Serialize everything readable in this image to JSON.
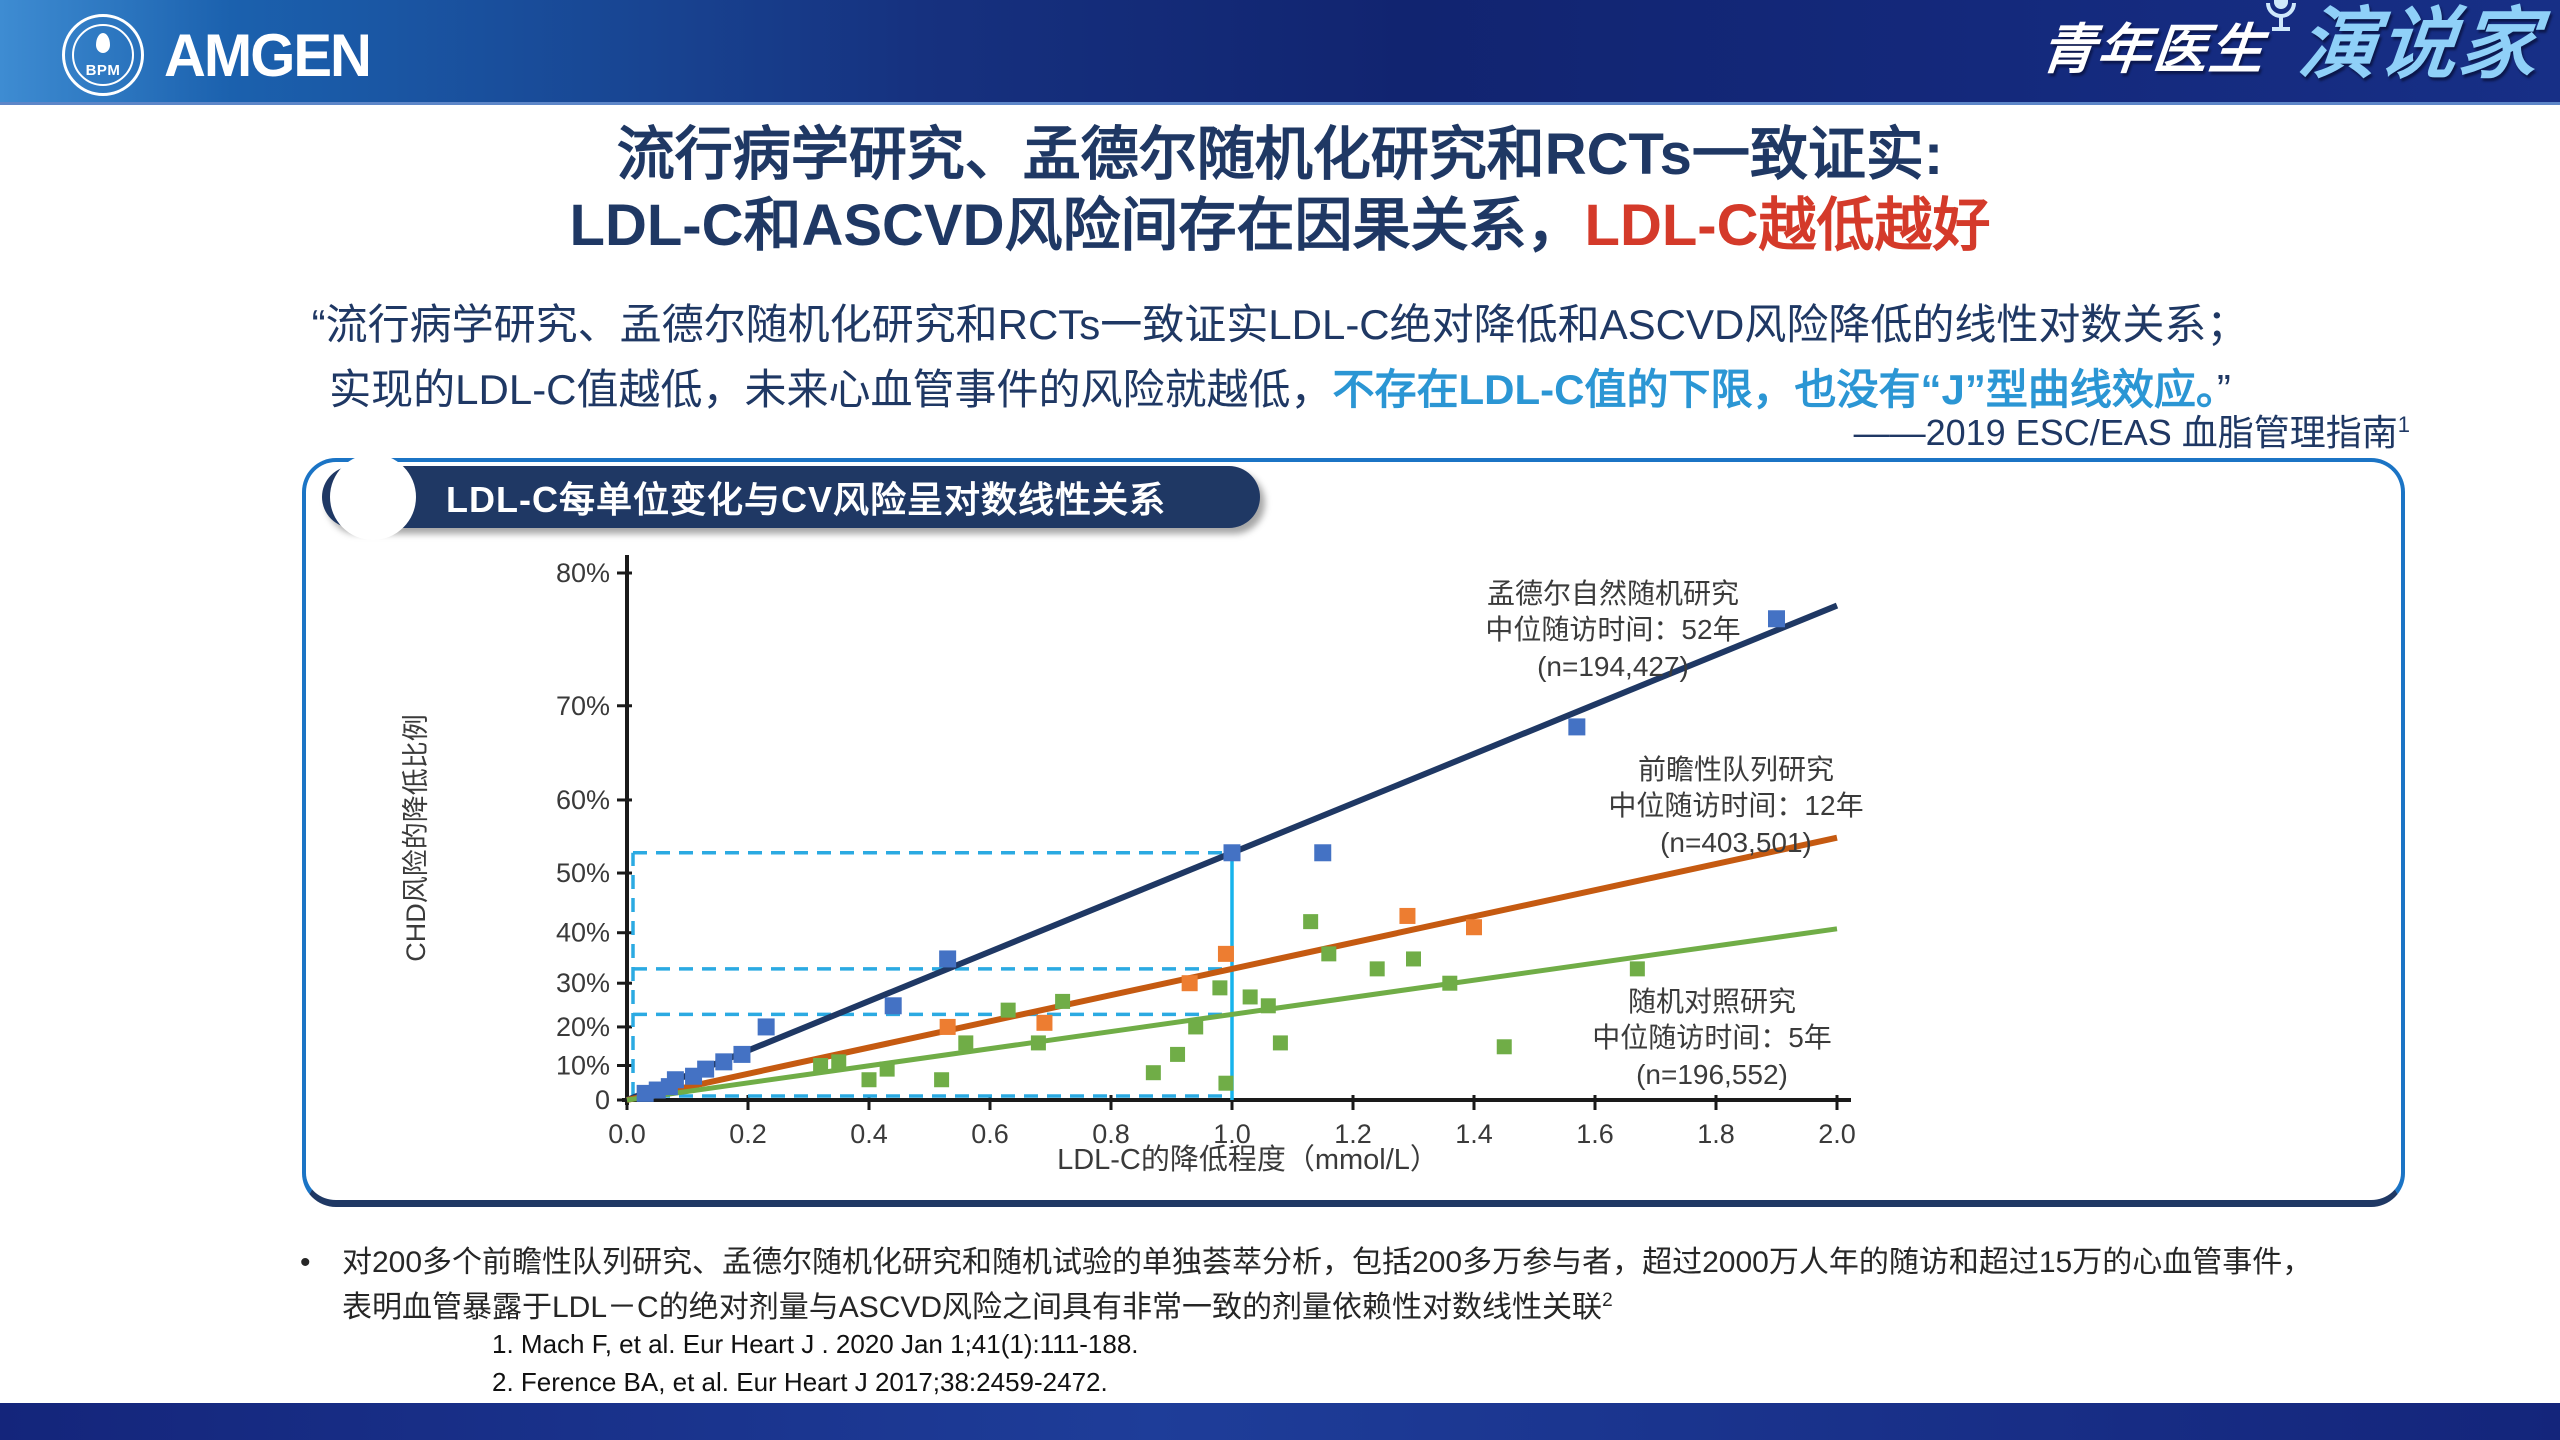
{
  "colors": {
    "navy_text": "#1F3864",
    "accent_red": "#D43A2A",
    "highlight_blue": "#2B96D4",
    "panel_border": "#1B74C5",
    "guide_cyan": "#2BAAE2"
  },
  "header": {
    "bpm_label": "BPM",
    "amgen_label": "AMGEN",
    "right_logo_part1": "青年医生",
    "right_logo_part2": "演说家"
  },
  "title": {
    "line1": "流行病学研究、孟德尔随机化研究和RCTs一致证实:",
    "line2_dark": "LDL-C和ASCVD风险间存在因果关系，",
    "line2_red": "LDL-C越低越好"
  },
  "quote": {
    "line1": "“流行病学研究、孟德尔随机化研究和RCTs一致证实LDL-C绝对降低和ASCVD风险降低的线性对数关系；",
    "line2_normal": "实现的LDL-C值越低，未来心血管事件的风险就越低，",
    "line2_highlight": "不存在LDL-C值的下限，也没有“J”型曲线效应。",
    "line2_close": "”",
    "attribution": "——2019 ESC/EAS 血脂管理指南",
    "attribution_sup": "1"
  },
  "panel": {
    "badge": "LDL-C每单位变化与CV风险呈对数线性关系"
  },
  "chart_data": {
    "type": "scatter",
    "title": "LDL-C每单位变化与CV风险呈对数线性关系",
    "xlabel": "LDL-C的降低程度（mmol/L）",
    "ylabel": "CHD风险的降低比例",
    "xlim": [
      0.0,
      2.0
    ],
    "y_scale": "proportional log: position ~ -ln(1 - p), 0 to 80%",
    "grid": false,
    "x_ticks": [
      {
        "label": "0.0",
        "v": 0.0
      },
      {
        "label": "0.2",
        "v": 0.2
      },
      {
        "label": "0.4",
        "v": 0.4
      },
      {
        "label": "0.6",
        "v": 0.6
      },
      {
        "label": "0.8",
        "v": 0.8
      },
      {
        "label": "1.0",
        "v": 1.0
      },
      {
        "label": "1.2",
        "v": 1.2
      },
      {
        "label": "1.4",
        "v": 1.4
      },
      {
        "label": "1.6",
        "v": 1.6
      },
      {
        "label": "1.8",
        "v": 1.8
      },
      {
        "label": "2.0",
        "v": 2.0
      }
    ],
    "y_ticks": [
      {
        "label": "80%",
        "p": 0.8
      },
      {
        "label": "70%",
        "p": 0.7
      },
      {
        "label": "60%",
        "p": 0.6
      },
      {
        "label": "50%",
        "p": 0.5
      },
      {
        "label": "40%",
        "p": 0.4
      },
      {
        "label": "30%",
        "p": 0.3
      },
      {
        "label": "20%",
        "p": 0.2
      },
      {
        "label": "10%",
        "p": 0.1
      },
      {
        "label": "0",
        "p": 0.0
      }
    ],
    "guides": {
      "color": "#2BAAE2",
      "solid_color": "#17B3EC",
      "x_ref": 1.0,
      "y_refs_pct": [
        53,
        33,
        23
      ],
      "baseline": true
    },
    "series": [
      {
        "name": "孟德尔自然随机研究",
        "annotation": [
          "孟德尔自然随机研究",
          "中位随访时间：52年",
          "(n=194,427)"
        ],
        "line_color": "#1F3864",
        "marker_color": "#4472C4",
        "value_at_1_mmol_pct": 53,
        "points": [
          [
            0.03,
            2
          ],
          [
            0.05,
            3
          ],
          [
            0.07,
            4
          ],
          [
            0.08,
            6
          ],
          [
            0.11,
            7
          ],
          [
            0.13,
            9
          ],
          [
            0.16,
            11
          ],
          [
            0.19,
            13
          ],
          [
            0.23,
            20
          ],
          [
            0.44,
            25
          ],
          [
            0.53,
            35
          ],
          [
            1.0,
            53
          ],
          [
            1.15,
            53
          ],
          [
            1.57,
            68
          ],
          [
            1.9,
            77
          ]
        ]
      },
      {
        "name": "前瞻性队列研究",
        "annotation": [
          "前瞻性队列研究",
          "中位随访时间：12年",
          "(n=403,501)"
        ],
        "line_color": "#C55A11",
        "marker_color": "#ED7D31",
        "value_at_1_mmol_pct": 33,
        "points": [
          [
            0.53,
            20
          ],
          [
            0.69,
            21
          ],
          [
            0.93,
            30
          ],
          [
            0.99,
            36
          ],
          [
            1.29,
            43
          ],
          [
            1.4,
            41
          ]
        ]
      },
      {
        "name": "随机对照研究",
        "annotation": [
          "随机对照研究",
          "中位随访时间：5年",
          "(n=196,552)"
        ],
        "line_color": "#70AD47",
        "marker_color": "#70AD47",
        "value_at_1_mmol_pct": 23,
        "points": [
          [
            0.32,
            10
          ],
          [
            0.35,
            11
          ],
          [
            0.4,
            6
          ],
          [
            0.43,
            9
          ],
          [
            0.52,
            6
          ],
          [
            0.56,
            16
          ],
          [
            0.63,
            24
          ],
          [
            0.68,
            16
          ],
          [
            0.72,
            26
          ],
          [
            0.87,
            8
          ],
          [
            0.91,
            13
          ],
          [
            0.94,
            20
          ],
          [
            0.98,
            29
          ],
          [
            0.99,
            5
          ],
          [
            1.03,
            27
          ],
          [
            1.06,
            25
          ],
          [
            1.08,
            16
          ],
          [
            1.13,
            42
          ],
          [
            1.16,
            36
          ],
          [
            1.24,
            33
          ],
          [
            1.3,
            35
          ],
          [
            1.36,
            30
          ],
          [
            1.45,
            15
          ],
          [
            1.67,
            33
          ]
        ]
      }
    ]
  },
  "bullet": {
    "marker": "•",
    "line1": "对200多个前瞻性队列研究、孟德尔随机化研究和随机试验的单独荟萃分析，包括200多万参与者，超过2000万人年的随访和超过15万的心血管事件，",
    "line2": "表明血管暴露于LDL－C的绝对剂量与ASCVD风险之间具有非常一致的剂量依赖性对数线性关联",
    "line2_sup": "2"
  },
  "references": [
    "1. Mach F, et al. Eur Heart J . 2020 Jan 1;41(1):111-188.",
    "2. Ference BA, et al. Eur Heart J 2017;38:2459-2472."
  ]
}
